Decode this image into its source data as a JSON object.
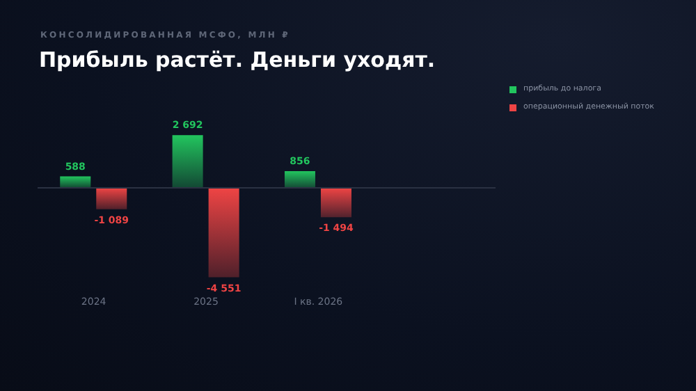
{
  "chart_data": {
    "type": "bar",
    "title": "Прибыль растёт. Деньги уходят.",
    "subtitle": "КОНСОЛИДИРОВАННАЯ МСФО, МЛН ₽",
    "categories": [
      "2024",
      "2025",
      "I кв. 2026"
    ],
    "series": [
      {
        "name": "прибыль до налога",
        "color": "#22c55e",
        "values": [
          588,
          2692,
          856
        ],
        "value_labels": [
          "588",
          "2 692",
          "856"
        ]
      },
      {
        "name": "операционный денежный поток",
        "color": "#ef4444",
        "values": [
          -1089,
          -4551,
          -1494
        ],
        "value_labels": [
          "-1 089",
          "-4 551",
          "-1 494"
        ]
      }
    ],
    "legend": "top right"
  }
}
